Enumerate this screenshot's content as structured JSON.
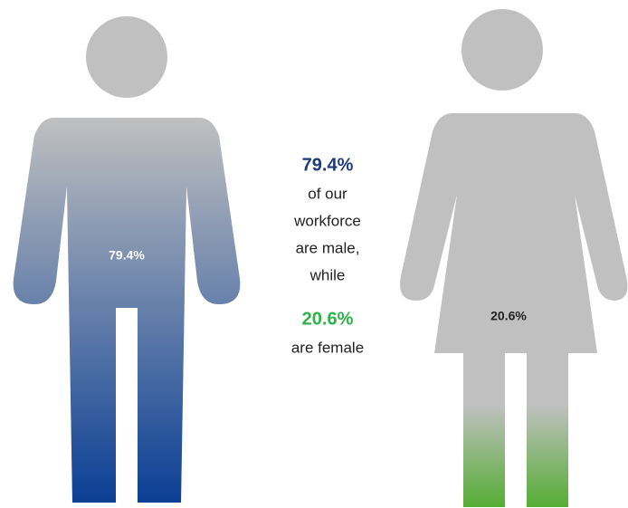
{
  "chart_data": {
    "type": "pictogram",
    "values": [
      79.4,
      20.6
    ],
    "value_labels": [
      "79.4%",
      "20.6%"
    ],
    "colors": [
      "#0b3f94",
      "#56ad35"
    ],
    "base_color": "#c0c0c0",
    "ylim": [
      0,
      100
    ],
    "caption": {
      "lead": [
        "of our",
        "workforce",
        "are male,",
        "while"
      ],
      "tail": [
        "are female"
      ]
    }
  }
}
